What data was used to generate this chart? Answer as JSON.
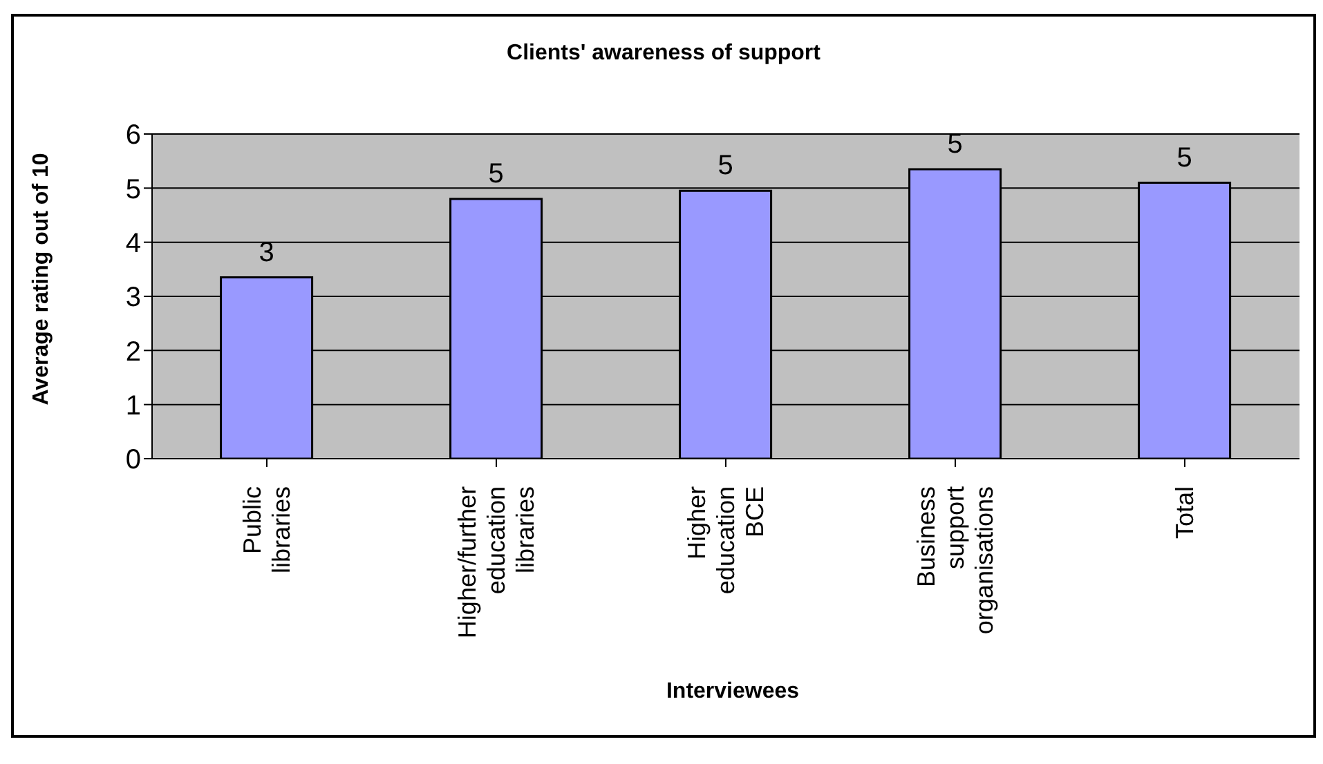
{
  "chart_data": {
    "type": "bar",
    "title": "Clients' awareness of support",
    "xlabel": "Interviewees",
    "ylabel": "Average rating out of 10",
    "categories": [
      "Public libraries",
      "Higher/further education libraries",
      "Higher education BCE",
      "Business support organisations",
      "Total"
    ],
    "values": [
      3.35,
      4.8,
      4.95,
      5.35,
      5.1
    ],
    "value_labels": [
      "3",
      "5",
      "5",
      "5",
      "5"
    ],
    "color": "#9999ff",
    "ylim": [
      0,
      6
    ],
    "yticks": [
      0,
      1,
      2,
      3,
      4,
      5,
      6
    ],
    "grid": "y"
  }
}
